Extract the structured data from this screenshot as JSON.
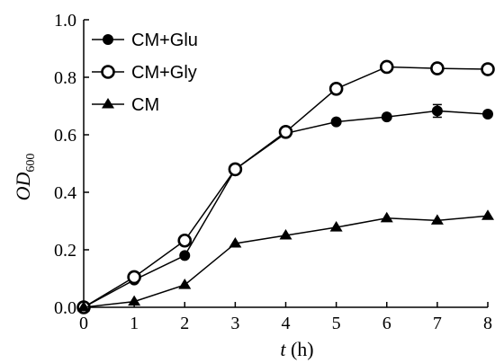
{
  "chart_data": {
    "type": "line",
    "title": "",
    "x": [
      0,
      1,
      2,
      3,
      4,
      5,
      6,
      7,
      8
    ],
    "xlim": [
      0,
      8
    ],
    "ylim": [
      0,
      1
    ],
    "x_ticks": [
      "0",
      "1",
      "2",
      "3",
      "4",
      "5",
      "6",
      "7",
      "8"
    ],
    "y_ticks": [
      "0.0",
      "0.2",
      "0.4",
      "0.6",
      "0.8",
      "1.0"
    ],
    "xlabel": {
      "var": "t",
      "unit": " (h)"
    },
    "ylabel": {
      "main": "OD",
      "sub": "600"
    },
    "grid": false,
    "legend_position": "top-left",
    "series": [
      {
        "name": "CM+Glu",
        "marker": "filled-circle",
        "values": [
          0.0,
          0.095,
          0.18,
          0.48,
          0.605,
          0.645,
          0.662,
          0.683,
          0.672
        ],
        "error": [
          0,
          0,
          0,
          0,
          0,
          0,
          0,
          0.022,
          0
        ]
      },
      {
        "name": "CM+Gly",
        "marker": "open-circle",
        "values": [
          0.0,
          0.105,
          0.232,
          0.48,
          0.61,
          0.76,
          0.836,
          0.831,
          0.828
        ],
        "error": [
          0,
          0,
          0,
          0,
          0,
          0.015,
          0,
          0,
          0
        ]
      },
      {
        "name": "CM",
        "marker": "filled-triangle",
        "values": [
          0.0,
          0.02,
          0.078,
          0.222,
          0.25,
          0.278,
          0.31,
          0.302,
          0.318
        ],
        "error": [
          0,
          0,
          0,
          0,
          0,
          0,
          0,
          0,
          0
        ]
      }
    ]
  }
}
